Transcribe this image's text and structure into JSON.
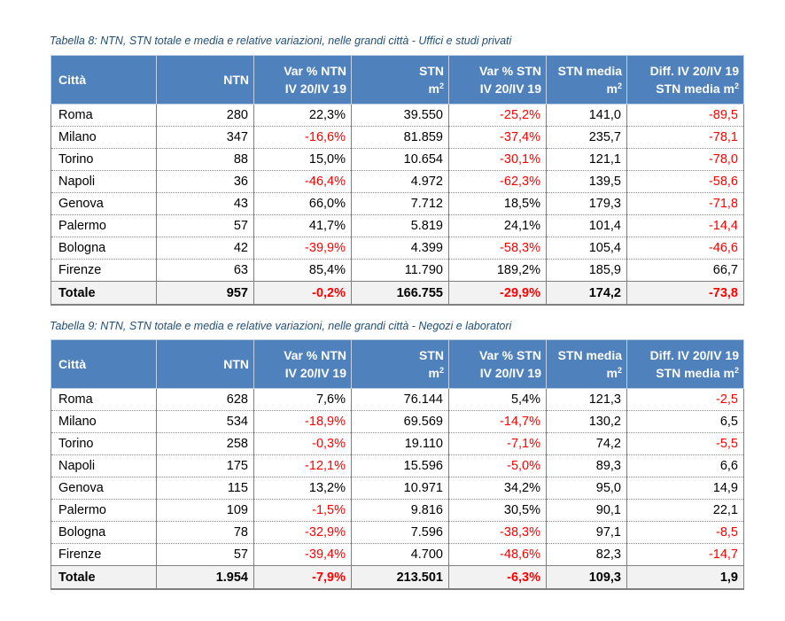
{
  "tables": [
    {
      "caption": "Tabella 8: NTN, STN totale e media e relative variazioni, nelle grandi città - Uffici e studi privati",
      "headers": [
        {
          "l1": "Città",
          "l2": ""
        },
        {
          "l1": "NTN",
          "l2": ""
        },
        {
          "l1": "Var % NTN",
          "l2": "IV 20/IV 19"
        },
        {
          "l1": "STN",
          "l2": "m",
          "sup": "2"
        },
        {
          "l1": "Var % STN",
          "l2": "IV 20/IV 19"
        },
        {
          "l1": "STN media",
          "l2": "m",
          "sup": "2"
        },
        {
          "l1": "Diff. IV 20/IV 19",
          "l2": "STN media m",
          "sup": "2"
        }
      ],
      "rows": [
        [
          "Roma",
          "280",
          "22,3%",
          "39.550",
          "-25,2%",
          "141,0",
          "-89,5"
        ],
        [
          "Milano",
          "347",
          "-16,6%",
          "81.859",
          "-37,4%",
          "235,7",
          "-78,1"
        ],
        [
          "Torino",
          "88",
          "15,0%",
          "10.654",
          "-30,1%",
          "121,1",
          "-78,0"
        ],
        [
          "Napoli",
          "36",
          "-46,4%",
          "4.972",
          "-62,3%",
          "139,5",
          "-58,6"
        ],
        [
          "Genova",
          "43",
          "66,0%",
          "7.712",
          "18,5%",
          "179,3",
          "-71,8"
        ],
        [
          "Palermo",
          "57",
          "41,7%",
          "5.819",
          "24,1%",
          "101,4",
          "-14,4"
        ],
        [
          "Bologna",
          "42",
          "-39,9%",
          "4.399",
          "-58,3%",
          "105,4",
          "-46,6"
        ],
        [
          "Firenze",
          "63",
          "85,4%",
          "11.790",
          "189,2%",
          "185,9",
          "66,7"
        ]
      ],
      "total": [
        "Totale",
        "957",
        "-0,2%",
        "166.755",
        "-29,9%",
        "174,2",
        "-73,8"
      ]
    },
    {
      "caption": "Tabella 9: NTN, STN totale e media e relative variazioni, nelle grandi città - Negozi e laboratori",
      "headers": [
        {
          "l1": "Città",
          "l2": ""
        },
        {
          "l1": "NTN",
          "l2": ""
        },
        {
          "l1": "Var % NTN",
          "l2": "IV 20/IV 19"
        },
        {
          "l1": "STN",
          "l2": "m",
          "sup": "2"
        },
        {
          "l1": "Var % STN",
          "l2": "IV 20/IV 19"
        },
        {
          "l1": "STN media",
          "l2": "m",
          "sup": "2"
        },
        {
          "l1": "Diff. IV 20/IV 19",
          "l2": "STN media m",
          "sup": "2"
        }
      ],
      "rows": [
        [
          "Roma",
          "628",
          "7,6%",
          "76.144",
          "5,4%",
          "121,3",
          "-2,5"
        ],
        [
          "Milano",
          "534",
          "-18,9%",
          "69.569",
          "-14,7%",
          "130,2",
          "6,5"
        ],
        [
          "Torino",
          "258",
          "-0,3%",
          "19.110",
          "-7,1%",
          "74,2",
          "-5,5"
        ],
        [
          "Napoli",
          "175",
          "-12,1%",
          "15.596",
          "-5,0%",
          "89,3",
          "6,6"
        ],
        [
          "Genova",
          "115",
          "13,2%",
          "10.971",
          "34,2%",
          "95,0",
          "14,9"
        ],
        [
          "Palermo",
          "109",
          "-1,5%",
          "9.816",
          "30,5%",
          "90,1",
          "22,1"
        ],
        [
          "Bologna",
          "78",
          "-32,9%",
          "7.596",
          "-38,3%",
          "97,1",
          "-8,5"
        ],
        [
          "Firenze",
          "57",
          "-39,4%",
          "4.700",
          "-48,6%",
          "82,3",
          "-14,7"
        ]
      ],
      "total": [
        "Totale",
        "1.954",
        "-7,9%",
        "213.501",
        "-6,3%",
        "109,3",
        "1,9"
      ]
    }
  ],
  "colors": {
    "header_bg": "#4f81bd",
    "header_text": "#ffffff",
    "caption_text": "#1f4e79",
    "negative_text": "#ff0000",
    "total_bg": "#f2f2f2"
  }
}
